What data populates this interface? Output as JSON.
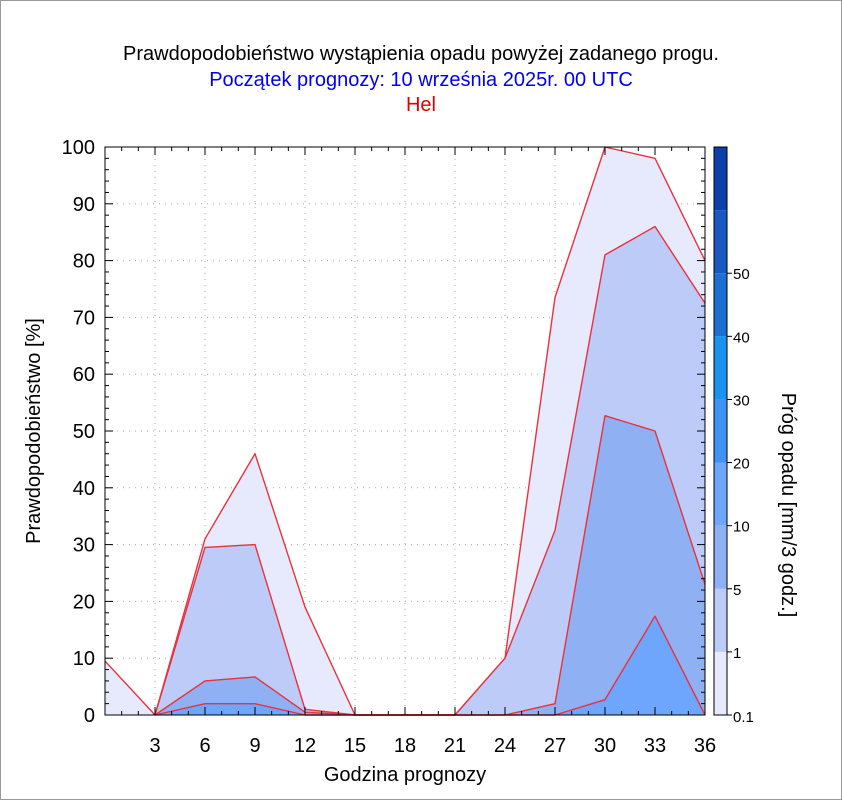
{
  "chart_data": {
    "type": "area",
    "title": "Prawdopodobieństwo wystąpienia opadu powyżej zadanego progu.",
    "subtitle": "Początek prognozy: 10 września 2025r. 00 UTC",
    "location": "Hel",
    "xlabel": "Godzina prognozy",
    "ylabel": "Prawdopodobieństwo [%]",
    "colorbar_label": "Próg opadu [mm/3 godz.]",
    "xlim": [
      0,
      36
    ],
    "ylim": [
      0,
      100
    ],
    "x_ticks": [
      "3",
      "6",
      "9",
      "12",
      "15",
      "18",
      "21",
      "24",
      "27",
      "30",
      "33",
      "36"
    ],
    "y_ticks": [
      "0",
      "10",
      "20",
      "30",
      "40",
      "50",
      "60",
      "70",
      "80",
      "90",
      "100"
    ],
    "grid": true,
    "x": [
      0,
      3,
      6,
      9,
      12,
      15,
      18,
      21,
      24,
      27,
      30,
      33,
      36
    ],
    "series": [
      {
        "threshold": "0.1",
        "color": "#e6eafc",
        "values": [
          9.5,
          0,
          31,
          46,
          19,
          0,
          0,
          0,
          10,
          73.5,
          100,
          98,
          80
        ]
      },
      {
        "threshold": "1",
        "color": "#bccbf8",
        "values": [
          null,
          0,
          29.5,
          30,
          1,
          0,
          0,
          0,
          10,
          32.5,
          81,
          86,
          72.5
        ]
      },
      {
        "threshold": "5",
        "color": "#8fb0f3",
        "values": [
          null,
          0,
          6,
          6.7,
          0.5,
          0,
          0,
          0,
          0,
          2,
          52.7,
          50,
          23
        ]
      },
      {
        "threshold": "10",
        "color": "#6ea6fd",
        "values": [
          null,
          0,
          2,
          2,
          0,
          0,
          0,
          0,
          0,
          0,
          2.7,
          17.4,
          0
        ]
      }
    ],
    "colorbar": {
      "tick_labels": [
        "0.1",
        "1",
        "5",
        "10",
        "20",
        "30",
        "40",
        "50"
      ],
      "colors": [
        "#e6eafc",
        "#bccbf8",
        "#8fb0f3",
        "#6ea6fd",
        "#3f93f5",
        "#1a93ee",
        "#1e6fd3",
        "#1858c0",
        "#0f3faa"
      ],
      "legend_placement": "right"
    }
  }
}
